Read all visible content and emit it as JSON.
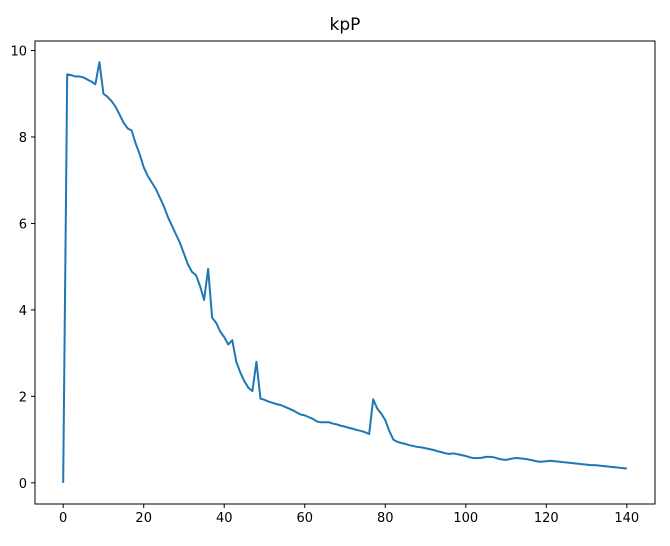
{
  "chart_data": {
    "type": "line",
    "title": "kpP",
    "x": [
      0,
      1,
      2,
      3,
      4,
      5,
      6,
      7,
      8,
      9,
      10,
      11,
      12,
      13,
      14,
      15,
      16,
      17,
      18,
      19,
      20,
      21,
      22,
      23,
      24,
      25,
      26,
      27,
      28,
      29,
      30,
      31,
      32,
      33,
      34,
      35,
      36,
      37,
      38,
      39,
      40,
      41,
      42,
      43,
      44,
      45,
      46,
      47,
      48,
      49,
      50,
      51,
      52,
      53,
      54,
      55,
      56,
      57,
      58,
      59,
      60,
      61,
      62,
      63,
      64,
      65,
      66,
      67,
      68,
      69,
      70,
      71,
      72,
      73,
      74,
      75,
      76,
      77,
      78,
      79,
      80,
      81,
      82,
      83,
      84,
      85,
      86,
      87,
      88,
      89,
      90,
      91,
      92,
      93,
      94,
      95,
      96,
      97,
      98,
      99,
      100,
      101,
      102,
      103,
      104,
      105,
      106,
      107,
      108,
      109,
      110,
      111,
      112,
      113,
      114,
      115,
      116,
      117,
      118,
      119,
      120,
      121,
      122,
      123,
      124,
      125,
      126,
      127,
      128,
      129,
      130,
      131,
      132,
      133,
      134,
      135,
      136,
      137,
      138,
      139,
      140
    ],
    "series": [
      {
        "color": "#1f77b4",
        "values": [
          0,
          9.45,
          9.43,
          9.4,
          9.4,
          9.38,
          9.33,
          9.28,
          9.22,
          9.73,
          9.0,
          8.93,
          8.83,
          8.7,
          8.52,
          8.33,
          8.2,
          8.15,
          7.85,
          7.6,
          7.3,
          7.1,
          6.95,
          6.8,
          6.6,
          6.4,
          6.15,
          5.95,
          5.75,
          5.55,
          5.3,
          5.05,
          4.88,
          4.8,
          4.55,
          4.23,
          4.95,
          3.82,
          3.7,
          3.5,
          3.37,
          3.2,
          3.3,
          2.8,
          2.55,
          2.35,
          2.2,
          2.12,
          2.8,
          1.95,
          1.92,
          1.88,
          1.85,
          1.82,
          1.8,
          1.76,
          1.72,
          1.68,
          1.63,
          1.58,
          1.56,
          1.52,
          1.48,
          1.42,
          1.4,
          1.4,
          1.4,
          1.37,
          1.35,
          1.32,
          1.3,
          1.27,
          1.25,
          1.22,
          1.2,
          1.17,
          1.13,
          1.93,
          1.72,
          1.6,
          1.45,
          1.2,
          1.0,
          0.95,
          0.92,
          0.9,
          0.87,
          0.85,
          0.83,
          0.82,
          0.8,
          0.78,
          0.76,
          0.73,
          0.71,
          0.68,
          0.67,
          0.68,
          0.66,
          0.64,
          0.62,
          0.59,
          0.57,
          0.57,
          0.58,
          0.6,
          0.6,
          0.59,
          0.56,
          0.54,
          0.53,
          0.55,
          0.57,
          0.57,
          0.56,
          0.55,
          0.53,
          0.51,
          0.49,
          0.49,
          0.5,
          0.51,
          0.5,
          0.49,
          0.48,
          0.47,
          0.46,
          0.45,
          0.44,
          0.43,
          0.42,
          0.41,
          0.41,
          0.4,
          0.39,
          0.38,
          0.37,
          0.36,
          0.35,
          0.34,
          0.33
        ]
      }
    ],
    "xlim": [
      -7,
      147
    ],
    "ylim": [
      -0.49,
      10.22
    ],
    "xticks": [
      0,
      20,
      40,
      60,
      80,
      100,
      120,
      140
    ],
    "yticks": [
      0,
      2,
      4,
      6,
      8,
      10
    ]
  }
}
